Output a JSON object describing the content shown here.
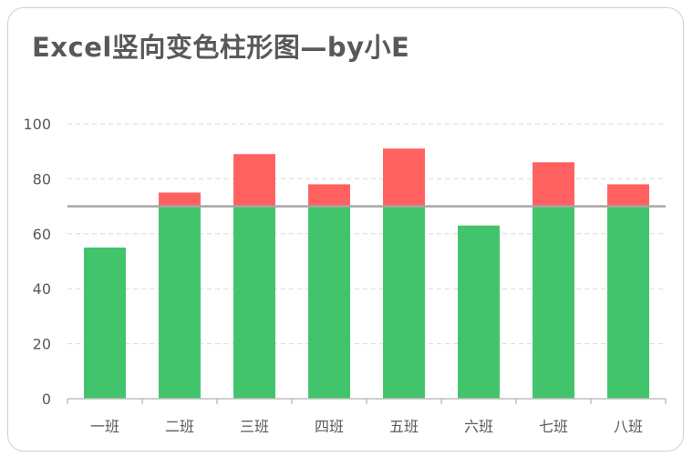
{
  "chart_data": {
    "type": "bar",
    "title": "Excel竖向变色柱形图—by小E",
    "xlabel": "",
    "ylabel": "",
    "categories": [
      "一班",
      "二班",
      "三班",
      "四班",
      "五班",
      "六班",
      "七班",
      "八班"
    ],
    "values": [
      55,
      75,
      89,
      78,
      91,
      63,
      86,
      78
    ],
    "threshold": 70,
    "ylim": [
      0,
      100
    ],
    "yticks": [
      0,
      20,
      40,
      60,
      80,
      100
    ],
    "grid": true,
    "colors": {
      "below": "#41c46b",
      "above": "#ff6161",
      "threshold_line": "#a6a6a6",
      "grid": "#d9d9d9",
      "axis": "#bfbfbf"
    }
  }
}
